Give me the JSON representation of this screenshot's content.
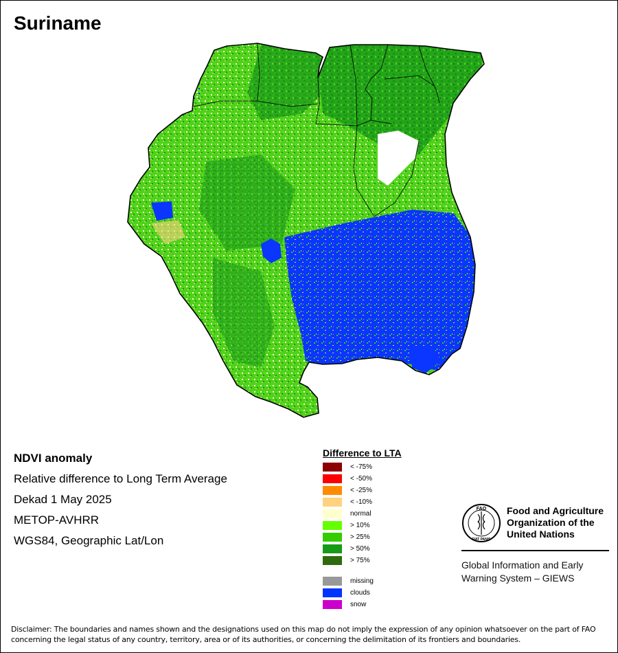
{
  "title": "Suriname",
  "info_lines": [
    "NDVI anomaly",
    "Relative difference to Long Term Average",
    "Dekad 1 May 2025",
    "METOP-AVHRR",
    "WGS84, Geographic Lat/Lon"
  ],
  "legend": {
    "title": "Difference to LTA",
    "classes": [
      {
        "label": "< -75%",
        "color": "#8b0000"
      },
      {
        "label": "< -50%",
        "color": "#ff0000"
      },
      {
        "label": "< -25%",
        "color": "#ff8c00"
      },
      {
        "label": "< -10%",
        "color": "#ffd27f"
      },
      {
        "label": "normal",
        "color": "#ffffcc"
      },
      {
        "label": "> 10%",
        "color": "#66ff00"
      },
      {
        "label": "> 25%",
        "color": "#33cc00"
      },
      {
        "label": "> 50%",
        "color": "#169b16"
      },
      {
        "label": "> 75%",
        "color": "#2e6b0e"
      }
    ],
    "extra": [
      {
        "label": "missing",
        "color": "#999999"
      },
      {
        "label": "clouds",
        "color": "#0033ff"
      },
      {
        "label": "snow",
        "color": "#cc00cc"
      }
    ]
  },
  "fao": {
    "logo_text": "FAO",
    "logo_motto": "FIAT PANIS",
    "org_name": "Food and Agriculture\nOrganization of the\nUnited Nations",
    "program": "Global Information and Early\nWarning System – GIEWS"
  },
  "disclaimer": "Disclaimer: The boundaries and names shown and the designations used on this map do not imply the expression of any opinion whatsoever on the part of FAO concerning the legal status of any country, territory, area or of its authorities, or concerning the delimitation of its frontiers and boundaries."
}
